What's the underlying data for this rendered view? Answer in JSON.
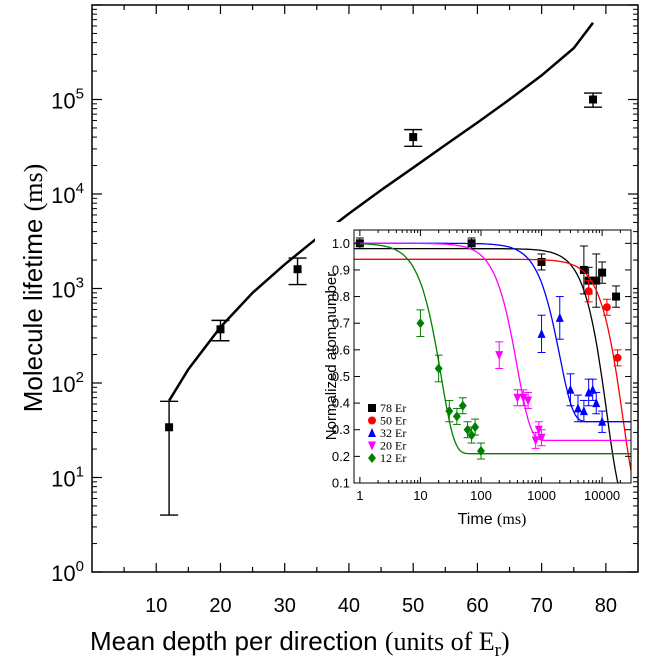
{
  "chart_data": [
    {
      "type": "scatter",
      "xlabel": "Mean depth per direction",
      "xlabel_units": "(units of E",
      "xlabel_units_sub": "r",
      "xlabel_units_close": ")",
      "ylabel": "Molecule lifetime",
      "ylabel_units": "(ms)",
      "x_scale": "linear",
      "y_scale": "log",
      "xlim": [
        0,
        85
      ],
      "ylim": [
        1,
        1000000
      ],
      "x_ticks": [
        10,
        20,
        30,
        40,
        50,
        60,
        70,
        80
      ],
      "y_tick_labels": [
        {
          "exp": 0,
          "base": "10",
          "sup": "0"
        },
        {
          "exp": 1,
          "base": "10",
          "sup": "1"
        },
        {
          "exp": 2,
          "base": "10",
          "sup": "2"
        },
        {
          "exp": 3,
          "base": "10",
          "sup": "3"
        },
        {
          "exp": 4,
          "base": "10",
          "sup": "4"
        },
        {
          "exp": 5,
          "base": "10",
          "sup": "5"
        }
      ],
      "series": [
        {
          "type": "scatter-errorbar",
          "marker": "square",
          "color": "#000000",
          "points": [
            {
              "x": 12,
              "y": 34,
              "ylo": 4,
              "yhi": 64
            },
            {
              "x": 20,
              "y": 370,
              "ylo": 280,
              "yhi": 460
            },
            {
              "x": 32,
              "y": 1600,
              "ylo": 1100,
              "yhi": 2100
            },
            {
              "x": 50,
              "y": 40000,
              "ylo": 32000,
              "yhi": 48000
            },
            {
              "x": 78,
              "y": 100000,
              "ylo": 83000,
              "yhi": 117000
            }
          ]
        },
        {
          "type": "line",
          "color": "#000000",
          "x": [
            12,
            15,
            20,
            25,
            30,
            35,
            40,
            45,
            50,
            55,
            60,
            65,
            70,
            75,
            78
          ],
          "y": [
            65,
            140,
            390,
            900,
            1800,
            3400,
            6200,
            11000,
            19000,
            33000,
            57000,
            100000,
            180000,
            350000,
            650000
          ]
        }
      ]
    },
    {
      "type": "scatter",
      "inset": true,
      "xlabel": "Time",
      "xlabel_units": "(ms)",
      "ylabel": "Normalized atom number",
      "x_scale": "log",
      "y_scale": "linear",
      "xlim": [
        0.8,
        30000
      ],
      "ylim": [
        0.1,
        1.05
      ],
      "x_ticks": [
        {
          "value": 1,
          "label": "1"
        },
        {
          "value": 10,
          "label": "10"
        },
        {
          "value": 100,
          "label": "100"
        },
        {
          "value": 1000,
          "label": "1000"
        },
        {
          "value": 10000,
          "label": "10000"
        }
      ],
      "y_ticks": [
        "0.1",
        "0.2",
        "0.3",
        "0.4",
        "0.5",
        "0.6",
        "0.7",
        "0.8",
        "0.9",
        "1.0"
      ],
      "legend_position": "bottom-left",
      "series": [
        {
          "name": "78 Er",
          "color": "#000000",
          "marker": "square",
          "points": [
            {
              "x": 1,
              "y": 1.0,
              "e": 0.02
            },
            {
              "x": 70,
              "y": 1.0,
              "e": 0.02
            },
            {
              "x": 1000,
              "y": 0.93,
              "e": 0.03
            },
            {
              "x": 5000,
              "y": 0.9,
              "e": 0.09
            },
            {
              "x": 6000,
              "y": 0.86,
              "e": 0.05
            },
            {
              "x": 8000,
              "y": 0.86,
              "e": 0.1
            },
            {
              "x": 10000,
              "y": 0.89,
              "e": 0.04
            },
            {
              "x": 17000,
              "y": 0.8,
              "e": 0.04
            }
          ],
          "fit": {
            "amp": 0.98,
            "tau": 12000,
            "base": 0.0
          }
        },
        {
          "name": "50 Er",
          "color": "#ff0000",
          "marker": "circle",
          "points": [
            {
              "x": 6000,
              "y": 0.82,
              "e": 0.04
            },
            {
              "x": 12000,
              "y": 0.76,
              "e": 0.03
            },
            {
              "x": 18000,
              "y": 0.57,
              "e": 0.03
            }
          ],
          "fit": {
            "amp": 0.94,
            "tau": 22000,
            "base": 0.0
          }
        },
        {
          "name": "32 Er",
          "color": "#0000ff",
          "marker": "triangle-up",
          "points": [
            {
              "x": 1000,
              "y": 0.66,
              "e": 0.07
            },
            {
              "x": 2000,
              "y": 0.72,
              "e": 0.08
            },
            {
              "x": 3000,
              "y": 0.45,
              "e": 0.06
            },
            {
              "x": 4000,
              "y": 0.38,
              "e": 0.05
            },
            {
              "x": 5000,
              "y": 0.37,
              "e": 0.04
            },
            {
              "x": 6000,
              "y": 0.44,
              "e": 0.05
            },
            {
              "x": 7000,
              "y": 0.45,
              "e": 0.04
            },
            {
              "x": 8000,
              "y": 0.4,
              "e": 0.04
            },
            {
              "x": 10000,
              "y": 0.33,
              "e": 0.04
            }
          ],
          "fit": {
            "amp": 0.67,
            "tau": 2000,
            "base": 0.33
          }
        },
        {
          "name": "20 Er",
          "color": "#ff00ff",
          "marker": "triangle-down",
          "points": [
            {
              "x": 200,
              "y": 0.58,
              "e": 0.05
            },
            {
              "x": 400,
              "y": 0.42,
              "e": 0.03
            },
            {
              "x": 500,
              "y": 0.42,
              "e": 0.03
            },
            {
              "x": 600,
              "y": 0.41,
              "e": 0.03
            },
            {
              "x": 800,
              "y": 0.26,
              "e": 0.03
            },
            {
              "x": 900,
              "y": 0.3,
              "e": 0.03
            },
            {
              "x": 1000,
              "y": 0.27,
              "e": 0.03
            }
          ],
          "fit": {
            "amp": 0.74,
            "tau": 400,
            "base": 0.26
          }
        },
        {
          "name": "12 Er",
          "color": "#008000",
          "marker": "diamond",
          "points": [
            {
              "x": 10,
              "y": 0.7,
              "e": 0.05
            },
            {
              "x": 20,
              "y": 0.53,
              "e": 0.05
            },
            {
              "x": 30,
              "y": 0.37,
              "e": 0.04
            },
            {
              "x": 40,
              "y": 0.35,
              "e": 0.03
            },
            {
              "x": 50,
              "y": 0.39,
              "e": 0.03
            },
            {
              "x": 60,
              "y": 0.3,
              "e": 0.03
            },
            {
              "x": 70,
              "y": 0.28,
              "e": 0.03
            },
            {
              "x": 80,
              "y": 0.31,
              "e": 0.03
            },
            {
              "x": 100,
              "y": 0.22,
              "e": 0.03
            }
          ],
          "fit": {
            "amp": 0.79,
            "tau": 22,
            "base": 0.21
          }
        }
      ]
    }
  ]
}
